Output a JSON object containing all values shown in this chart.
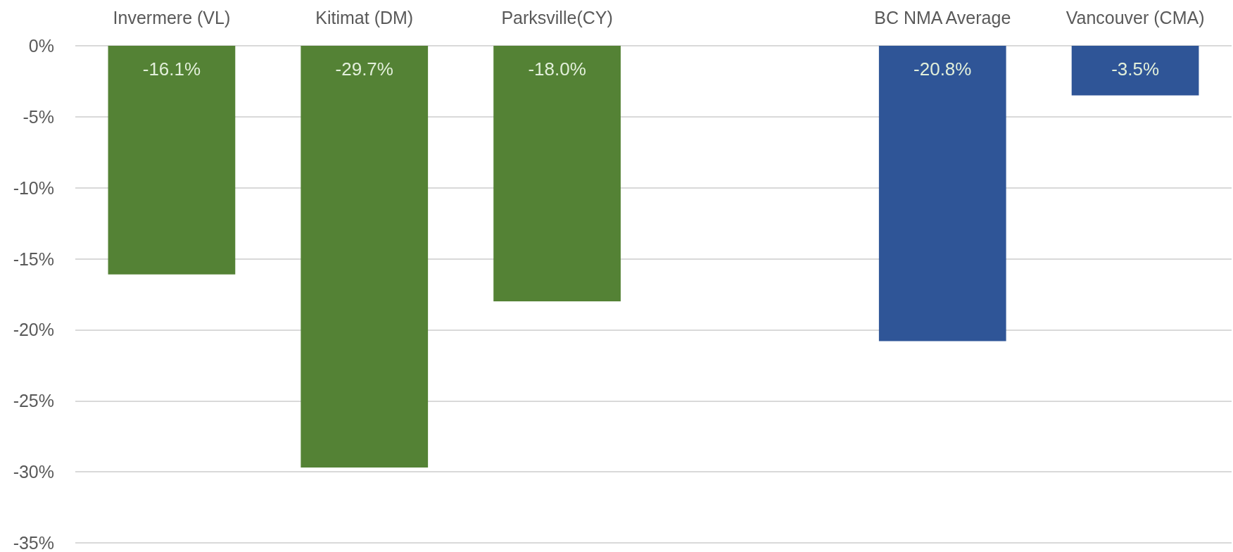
{
  "chart_data": {
    "type": "bar",
    "categories": [
      "Invermere (VL)",
      "Kitimat (DM)",
      "Parksville(CY)",
      null,
      "BC NMA Average",
      "Vancouver (CMA)"
    ],
    "values": [
      -16.1,
      -29.7,
      -18.0,
      null,
      -20.8,
      -3.5
    ],
    "colors": [
      "#548235",
      "#548235",
      "#548235",
      null,
      "#2f5597",
      "#2f5597"
    ],
    "value_labels": [
      "-16.1%",
      "-29.7%",
      "-18.0%",
      null,
      "-20.8%",
      "-3.5%"
    ],
    "ylim": [
      -35,
      0
    ],
    "yticks": [
      {
        "value": -35,
        "label": "-35%"
      },
      {
        "value": -30,
        "label": "-30%"
      },
      {
        "value": -25,
        "label": "-25%"
      },
      {
        "value": -20,
        "label": "-20%"
      },
      {
        "value": -15,
        "label": "-15%"
      },
      {
        "value": -10,
        "label": "-10%"
      },
      {
        "value": -5,
        "label": "-5%"
      },
      {
        "value": 0,
        "label": "0%"
      }
    ],
    "grid": "y"
  }
}
